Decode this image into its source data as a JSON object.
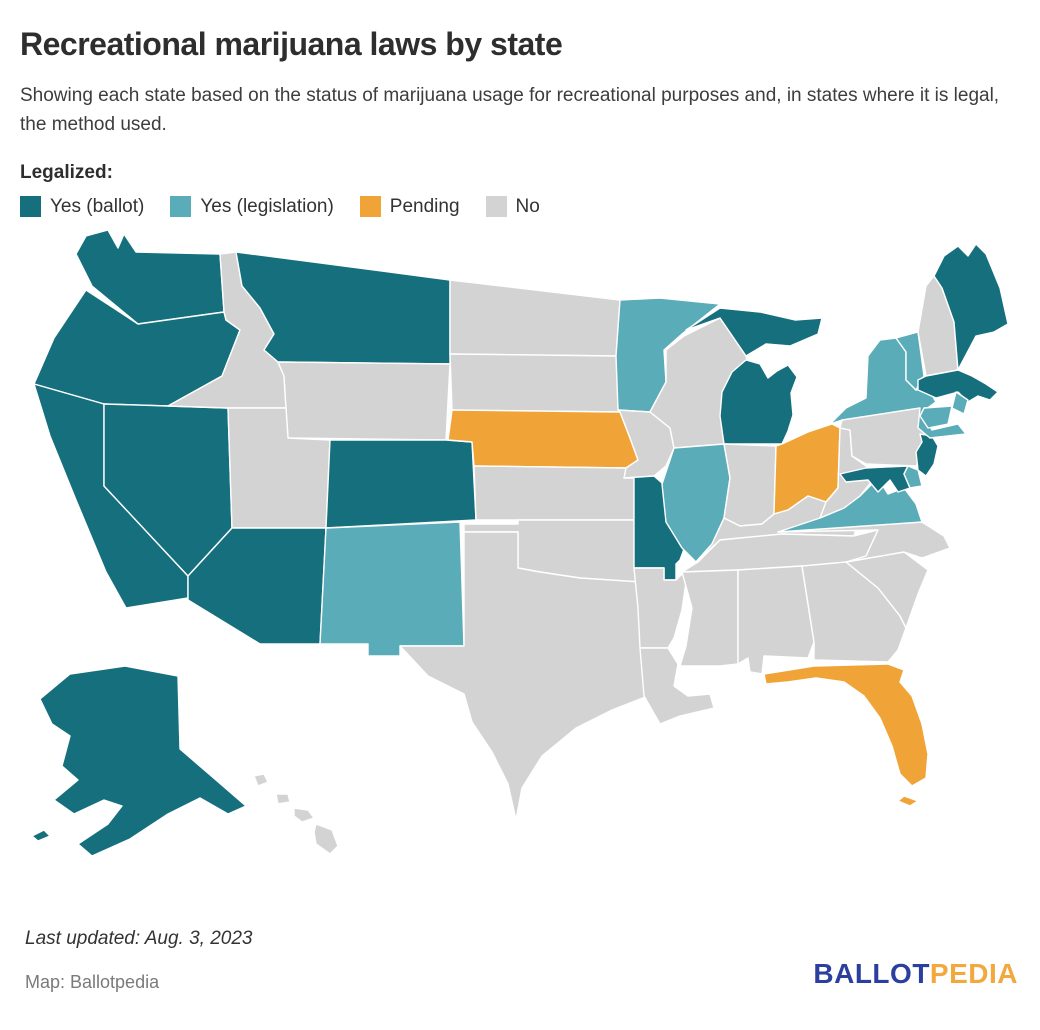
{
  "title": "Recreational marijuana laws by state",
  "subtitle": "Showing each state based on the status of marijuana usage for recreational purposes and, in states where it is legal, the method used.",
  "legend": {
    "label": "Legalized:",
    "items": [
      {
        "label": "Yes (ballot)",
        "status": "yes_ballot",
        "color": "#156F7D"
      },
      {
        "label": "Yes (legislation)",
        "status": "yes_legislation",
        "color": "#5AACB8"
      },
      {
        "label": "Pending",
        "status": "pending",
        "color": "#F0A437"
      },
      {
        "label": "No",
        "status": "no",
        "color": "#D3D3D3"
      }
    ]
  },
  "colors": {
    "yes_ballot": "#156F7D",
    "yes_legislation": "#5AACB8",
    "pending": "#F0A437",
    "no": "#D3D3D3",
    "border": "#FFFFFF"
  },
  "map": {
    "type": "choropleth",
    "states": [
      {
        "id": "WA",
        "name": "Washington",
        "status": "yes_ballot"
      },
      {
        "id": "OR",
        "name": "Oregon",
        "status": "yes_ballot"
      },
      {
        "id": "CA",
        "name": "California",
        "status": "yes_ballot"
      },
      {
        "id": "NV",
        "name": "Nevada",
        "status": "yes_ballot"
      },
      {
        "id": "ID",
        "name": "Idaho",
        "status": "no"
      },
      {
        "id": "MT",
        "name": "Montana",
        "status": "yes_ballot"
      },
      {
        "id": "WY",
        "name": "Wyoming",
        "status": "no"
      },
      {
        "id": "UT",
        "name": "Utah",
        "status": "no"
      },
      {
        "id": "CO",
        "name": "Colorado",
        "status": "yes_ballot"
      },
      {
        "id": "AZ",
        "name": "Arizona",
        "status": "yes_ballot"
      },
      {
        "id": "NM",
        "name": "New Mexico",
        "status": "yes_legislation"
      },
      {
        "id": "ND",
        "name": "North Dakota",
        "status": "no"
      },
      {
        "id": "SD",
        "name": "South Dakota",
        "status": "no"
      },
      {
        "id": "NE",
        "name": "Nebraska",
        "status": "pending"
      },
      {
        "id": "KS",
        "name": "Kansas",
        "status": "no"
      },
      {
        "id": "OK",
        "name": "Oklahoma",
        "status": "no"
      },
      {
        "id": "TX",
        "name": "Texas",
        "status": "no"
      },
      {
        "id": "MN",
        "name": "Minnesota",
        "status": "yes_legislation"
      },
      {
        "id": "IA",
        "name": "Iowa",
        "status": "no"
      },
      {
        "id": "MO",
        "name": "Missouri",
        "status": "yes_ballot"
      },
      {
        "id": "AR",
        "name": "Arkansas",
        "status": "no"
      },
      {
        "id": "LA",
        "name": "Louisiana",
        "status": "no"
      },
      {
        "id": "WI",
        "name": "Wisconsin",
        "status": "no"
      },
      {
        "id": "MI",
        "name": "Michigan",
        "status": "yes_ballot"
      },
      {
        "id": "IL",
        "name": "Illinois",
        "status": "yes_legislation"
      },
      {
        "id": "IN",
        "name": "Indiana",
        "status": "no"
      },
      {
        "id": "OH",
        "name": "Ohio",
        "status": "pending"
      },
      {
        "id": "KY",
        "name": "Kentucky",
        "status": "no"
      },
      {
        "id": "TN",
        "name": "Tennessee",
        "status": "no"
      },
      {
        "id": "MS",
        "name": "Mississippi",
        "status": "no"
      },
      {
        "id": "AL",
        "name": "Alabama",
        "status": "no"
      },
      {
        "id": "GA",
        "name": "Georgia",
        "status": "no"
      },
      {
        "id": "FL",
        "name": "Florida",
        "status": "pending"
      },
      {
        "id": "SC",
        "name": "South Carolina",
        "status": "no"
      },
      {
        "id": "NC",
        "name": "North Carolina",
        "status": "no"
      },
      {
        "id": "VA",
        "name": "Virginia",
        "status": "yes_legislation"
      },
      {
        "id": "WV",
        "name": "West Virginia",
        "status": "no"
      },
      {
        "id": "PA",
        "name": "Pennsylvania",
        "status": "no"
      },
      {
        "id": "MD",
        "name": "Maryland",
        "status": "yes_ballot"
      },
      {
        "id": "DE",
        "name": "Delaware",
        "status": "yes_legislation"
      },
      {
        "id": "NJ",
        "name": "New Jersey",
        "status": "yes_ballot"
      },
      {
        "id": "NY",
        "name": "New York",
        "status": "yes_legislation"
      },
      {
        "id": "CT",
        "name": "Connecticut",
        "status": "yes_legislation"
      },
      {
        "id": "RI",
        "name": "Rhode Island",
        "status": "yes_legislation"
      },
      {
        "id": "MA",
        "name": "Massachusetts",
        "status": "yes_ballot"
      },
      {
        "id": "VT",
        "name": "Vermont",
        "status": "yes_legislation"
      },
      {
        "id": "NH",
        "name": "New Hampshire",
        "status": "no"
      },
      {
        "id": "ME",
        "name": "Maine",
        "status": "yes_ballot"
      },
      {
        "id": "AK",
        "name": "Alaska",
        "status": "yes_ballot"
      },
      {
        "id": "HI",
        "name": "Hawaii",
        "status": "no"
      }
    ]
  },
  "footer": {
    "last_updated": "Last updated: Aug. 3, 2023",
    "credit": "Map: Ballotpedia",
    "logo": {
      "ballot": "BALLOT",
      "pedia": "PEDIA",
      "ballot_color": "#2B3F9F",
      "pedia_color": "#F2A83D"
    }
  }
}
